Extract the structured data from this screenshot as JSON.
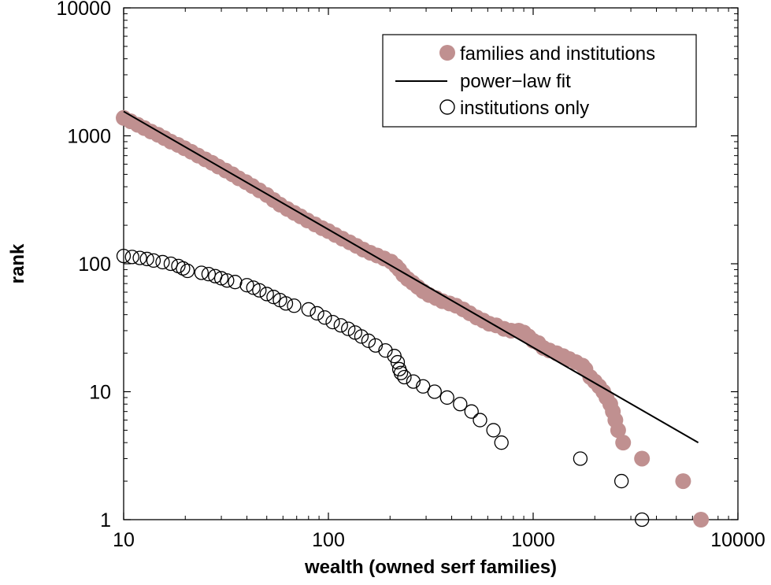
{
  "chart_data": {
    "type": "scatter",
    "title": "",
    "xlabel": "wealth (owned serf families)",
    "ylabel": "rank",
    "xscale": "log",
    "yscale": "log",
    "xlim": [
      10,
      10000
    ],
    "ylim": [
      1,
      10000
    ],
    "x_ticks": [
      10,
      100,
      1000,
      10000
    ],
    "x_tick_labels": [
      "10",
      "100",
      "1000",
      "10000"
    ],
    "y_ticks": [
      1,
      10,
      100,
      1000,
      10000
    ],
    "y_tick_labels": [
      "1",
      "10",
      "100",
      "1000",
      "10000"
    ],
    "grid": false,
    "legend_position": "top-right",
    "colors": {
      "families": "#c09090",
      "fit": "#000000",
      "institutions": "#000000"
    },
    "legend": [
      {
        "label": "families and institutions",
        "marker": "filled-circle",
        "color": "#c09090"
      },
      {
        "label": "power−law fit",
        "marker": "line",
        "color": "#000000"
      },
      {
        "label": "institutions only",
        "marker": "open-circle",
        "color": "#000000"
      }
    ],
    "series": [
      {
        "name": "families and institutions",
        "style": "filled-circle",
        "color": "#c09090",
        "points": [
          [
            10,
            1380
          ],
          [
            10.8,
            1300
          ],
          [
            11.7,
            1220
          ],
          [
            12.6,
            1150
          ],
          [
            13.6,
            1080
          ],
          [
            14.7,
            1020
          ],
          [
            15.8,
            960
          ],
          [
            17,
            900
          ],
          [
            18.4,
            850
          ],
          [
            19.8,
            800
          ],
          [
            21.4,
            750
          ],
          [
            23.1,
            700
          ],
          [
            25,
            655
          ],
          [
            27,
            615
          ],
          [
            29,
            575
          ],
          [
            31.5,
            535
          ],
          [
            34,
            500
          ],
          [
            36.5,
            465
          ],
          [
            39.5,
            435
          ],
          [
            42.5,
            405
          ],
          [
            46,
            375
          ],
          [
            50,
            345
          ],
          [
            54,
            315
          ],
          [
            58,
            290
          ],
          [
            63,
            268
          ],
          [
            68,
            250
          ],
          [
            73,
            235
          ],
          [
            79,
            218
          ],
          [
            86,
            203
          ],
          [
            93,
            190
          ],
          [
            100,
            180
          ],
          [
            108,
            168
          ],
          [
            117,
            157
          ],
          [
            127,
            147
          ],
          [
            137,
            138
          ],
          [
            148,
            129
          ],
          [
            160,
            122
          ],
          [
            173,
            116
          ],
          [
            187,
            110
          ],
          [
            202,
            104
          ],
          [
            214,
            96
          ],
          [
            222,
            90
          ],
          [
            232,
            82
          ],
          [
            244,
            76
          ],
          [
            258,
            71
          ],
          [
            273,
            66
          ],
          [
            290,
            61
          ],
          [
            310,
            57
          ],
          [
            335,
            54
          ],
          [
            360,
            51
          ],
          [
            390,
            49
          ],
          [
            420,
            47
          ],
          [
            455,
            44
          ],
          [
            490,
            41
          ],
          [
            530,
            38
          ],
          [
            570,
            36
          ],
          [
            610,
            34
          ],
          [
            660,
            33
          ],
          [
            720,
            31
          ],
          [
            780,
            30
          ],
          [
            850,
            30
          ],
          [
            900,
            29
          ],
          [
            950,
            27
          ],
          [
            1000,
            25
          ],
          [
            1060,
            24
          ],
          [
            1120,
            22
          ],
          [
            1200,
            21
          ],
          [
            1300,
            20
          ],
          [
            1400,
            19
          ],
          [
            1500,
            18
          ],
          [
            1620,
            17
          ],
          [
            1740,
            16
          ],
          [
            1800,
            15
          ],
          [
            1900,
            13
          ],
          [
            2000,
            12
          ],
          [
            2100,
            11
          ],
          [
            2200,
            10
          ],
          [
            2280,
            9
          ],
          [
            2380,
            8
          ],
          [
            2450,
            7
          ],
          [
            2520,
            6
          ],
          [
            2600,
            5
          ],
          [
            2750,
            4
          ],
          [
            3400,
            3
          ],
          [
            5400,
            2
          ],
          [
            6600,
            1
          ]
        ]
      },
      {
        "name": "power−law fit",
        "style": "line",
        "color": "#000000",
        "points": [
          [
            10,
            1550
          ],
          [
            6400,
            4
          ]
        ]
      },
      {
        "name": "institutions only",
        "style": "open-circle",
        "color": "#000000",
        "points": [
          [
            10,
            115
          ],
          [
            11,
            113
          ],
          [
            12,
            111
          ],
          [
            13,
            109
          ],
          [
            14,
            106
          ],
          [
            15.5,
            103
          ],
          [
            17,
            100
          ],
          [
            18.5,
            96
          ],
          [
            19.5,
            92
          ],
          [
            20.5,
            88
          ],
          [
            24,
            85
          ],
          [
            26,
            83
          ],
          [
            28,
            80
          ],
          [
            30,
            77
          ],
          [
            32,
            74
          ],
          [
            35,
            72
          ],
          [
            40,
            68
          ],
          [
            43,
            65
          ],
          [
            46,
            62
          ],
          [
            50,
            58
          ],
          [
            54,
            55
          ],
          [
            58,
            52
          ],
          [
            62,
            49
          ],
          [
            68,
            47
          ],
          [
            80,
            44
          ],
          [
            88,
            41
          ],
          [
            96,
            38
          ],
          [
            105,
            35
          ],
          [
            115,
            33
          ],
          [
            125,
            31
          ],
          [
            135,
            29
          ],
          [
            145,
            27
          ],
          [
            157,
            25
          ],
          [
            170,
            23
          ],
          [
            190,
            21
          ],
          [
            210,
            19
          ],
          [
            218,
            17
          ],
          [
            222,
            15
          ],
          [
            226,
            14
          ],
          [
            235,
            13
          ],
          [
            260,
            12
          ],
          [
            290,
            11
          ],
          [
            330,
            10
          ],
          [
            380,
            9
          ],
          [
            440,
            8
          ],
          [
            500,
            7
          ],
          [
            550,
            6
          ],
          [
            640,
            5
          ],
          [
            700,
            4
          ],
          [
            1700,
            3
          ],
          [
            2700,
            2
          ],
          [
            3400,
            1
          ]
        ]
      }
    ]
  }
}
